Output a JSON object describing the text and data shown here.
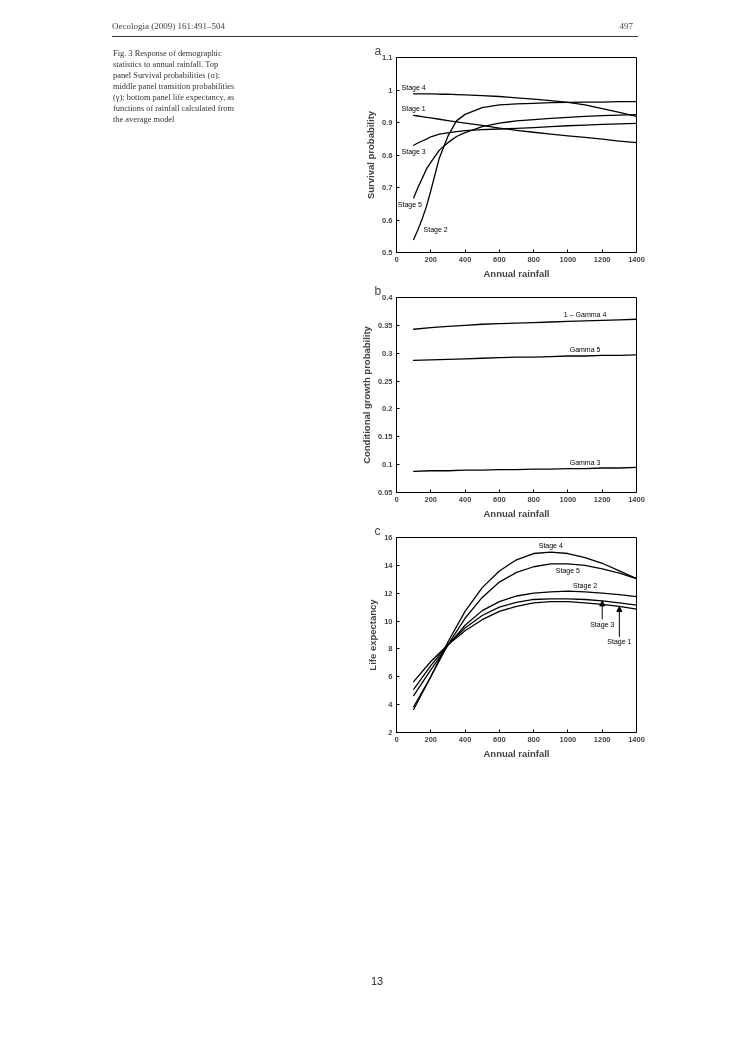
{
  "chart_data": [
    {
      "type": "other",
      "annotations": [
        "Oecologia (2009) 161:491–504",
        "497",
        "Fig. 3 Response of demographic statistics to annual rainfall. Top panel Survival probabilities (σ); middle panel transition probabilities (γ); bottom panel life expectancy, as functions of rainfall calculated from the average model",
        "13"
      ]
    },
    {
      "type": "line",
      "title": "a",
      "xlabel": "Annual rainfall",
      "ylabel": "Survival probability",
      "xlim": [
        0,
        1400
      ],
      "ylim": [
        0.5,
        1.1
      ],
      "xticks": [
        0,
        200,
        400,
        600,
        800,
        1000,
        1200,
        1400
      ],
      "yticks": [
        0.5,
        0.6,
        0.7,
        0.8,
        0.9,
        1,
        1.1
      ],
      "grid": false,
      "x": [
        100,
        125,
        150,
        175,
        200,
        250,
        300,
        350,
        400,
        500,
        600,
        700,
        800,
        900,
        1000,
        1100,
        1200,
        1300,
        1400
      ],
      "series": [
        {
          "color": "#000000",
          "values": [
            0.988,
            0.988,
            0.988,
            0.988,
            0.988,
            0.987,
            0.987,
            0.986,
            0.985,
            0.983,
            0.98,
            0.976,
            0.972,
            0.967,
            0.962,
            0.954,
            0.943,
            0.931,
            0.919
          ]
        },
        {
          "color": "#000000",
          "values": [
            0.922,
            0.92,
            0.918,
            0.916,
            0.914,
            0.91,
            0.906,
            0.902,
            0.898,
            0.891,
            0.883,
            0.876,
            0.87,
            0.864,
            0.859,
            0.854,
            0.849,
            0.843,
            0.838
          ]
        },
        {
          "color": "#000000",
          "values": [
            0.83,
            0.837,
            0.843,
            0.849,
            0.856,
            0.864,
            0.868,
            0.872,
            0.875,
            0.878,
            0.88,
            0.882,
            0.884,
            0.887,
            0.89,
            0.892,
            0.894,
            0.896,
            0.897
          ]
        },
        {
          "color": "#000000",
          "values": [
            0.668,
            0.7,
            0.728,
            0.757,
            0.777,
            0.815,
            0.838,
            0.857,
            0.869,
            0.887,
            0.898,
            0.905,
            0.909,
            0.913,
            0.916,
            0.919,
            0.921,
            0.923,
            0.924
          ]
        },
        {
          "color": "#000000",
          "values": [
            0.54,
            0.57,
            0.604,
            0.642,
            0.69,
            0.791,
            0.858,
            0.905,
            0.925,
            0.946,
            0.954,
            0.957,
            0.959,
            0.961,
            0.962,
            0.963,
            0.963,
            0.964,
            0.964
          ]
        }
      ],
      "annotations": [
        {
          "text": "Stage 4",
          "x": 100,
          "y": 0.988
        },
        {
          "text": "Stage 1",
          "x": 100,
          "y": 0.922
        },
        {
          "text": "Stage 3",
          "x": 100,
          "y": 0.83
        },
        {
          "text": "Stage 5",
          "x": 100,
          "y": 0.668
        },
        {
          "text": "Stage 2",
          "x": 125,
          "y": 0.57
        }
      ]
    },
    {
      "type": "line",
      "title": "b",
      "xlabel": "Annual rainfall",
      "ylabel": "Conditional growth probability",
      "xlim": [
        0,
        1400
      ],
      "ylim": [
        0.05,
        0.4
      ],
      "xticks": [
        0,
        200,
        400,
        600,
        800,
        1000,
        1200,
        1400
      ],
      "yticks": [
        0.05,
        0.1,
        0.15,
        0.2,
        0.25,
        0.3,
        0.35,
        0.4
      ],
      "grid": false,
      "x": [
        100,
        200,
        300,
        400,
        500,
        600,
        700,
        800,
        900,
        1000,
        1100,
        1200,
        1300,
        1400
      ],
      "series": [
        {
          "color": "#000000",
          "values": [
            0.343,
            0.346,
            0.348,
            0.35,
            0.352,
            0.353,
            0.354,
            0.355,
            0.356,
            0.357,
            0.358,
            0.359,
            0.36,
            0.361
          ]
        },
        {
          "color": "#000000",
          "values": [
            0.287,
            0.288,
            0.289,
            0.29,
            0.291,
            0.292,
            0.293,
            0.293,
            0.294,
            0.295,
            0.295,
            0.296,
            0.296,
            0.297
          ]
        },
        {
          "color": "#000000",
          "values": [
            0.088,
            0.089,
            0.089,
            0.09,
            0.09,
            0.091,
            0.091,
            0.092,
            0.092,
            0.093,
            0.093,
            0.094,
            0.094,
            0.095
          ]
        }
      ],
      "annotations": [
        {
          "text": "1 – Gamma 4",
          "x": 1100,
          "y": 0.358
        },
        {
          "text": "Gamma 5",
          "x": 1100,
          "y": 0.295
        },
        {
          "text": "Gamma 3",
          "x": 1100,
          "y": 0.093
        }
      ]
    },
    {
      "type": "line",
      "title": "c",
      "xlabel": "Annual rainfall",
      "ylabel": "Life expectancy",
      "xlim": [
        0,
        1400
      ],
      "ylim": [
        2,
        16
      ],
      "xticks": [
        0,
        200,
        400,
        600,
        800,
        1000,
        1200,
        1400
      ],
      "yticks": [
        2,
        4,
        6,
        8,
        10,
        12,
        14,
        16
      ],
      "grid": false,
      "x": [
        100,
        200,
        300,
        400,
        500,
        600,
        700,
        800,
        900,
        1000,
        1100,
        1200,
        1300,
        1400
      ],
      "series": [
        {
          "color": "#000000",
          "values": [
            3.65,
            6.0,
            8.5,
            10.7,
            12.4,
            13.6,
            14.4,
            14.85,
            14.95,
            14.85,
            14.55,
            14.15,
            13.6,
            13.05
          ]
        },
        {
          "color": "#000000",
          "values": [
            3.85,
            6.0,
            8.3,
            10.2,
            11.7,
            12.8,
            13.5,
            13.9,
            14.1,
            14.1,
            14.0,
            13.75,
            13.45,
            13.05
          ]
        },
        {
          "color": "#000000",
          "values": [
            4.65,
            6.5,
            8.25,
            9.7,
            10.75,
            11.4,
            11.8,
            12.0,
            12.1,
            12.15,
            12.1,
            12.0,
            11.9,
            11.75
          ]
        },
        {
          "color": "#000000",
          "values": [
            5.1,
            6.8,
            8.3,
            9.5,
            10.4,
            11.0,
            11.35,
            11.55,
            11.6,
            11.6,
            11.55,
            11.45,
            11.3,
            11.15
          ]
        },
        {
          "color": "#000000",
          "values": [
            5.65,
            7.1,
            8.3,
            9.3,
            10.1,
            10.7,
            11.05,
            11.3,
            11.4,
            11.4,
            11.3,
            11.2,
            11.05,
            10.85
          ]
        }
      ],
      "annotations": [
        {
          "text": "Stage 4",
          "x": 900,
          "y": 14.95
        },
        {
          "text": "Stage 5",
          "x": 1000,
          "y": 14.1
        },
        {
          "text": "Stage 2",
          "x": 1100,
          "y": 12.1
        },
        {
          "text": "Stage 3",
          "x": 1200,
          "y": 11.45
        },
        {
          "text": "Stage 1",
          "x": 1300,
          "y": 11.05
        }
      ]
    }
  ]
}
